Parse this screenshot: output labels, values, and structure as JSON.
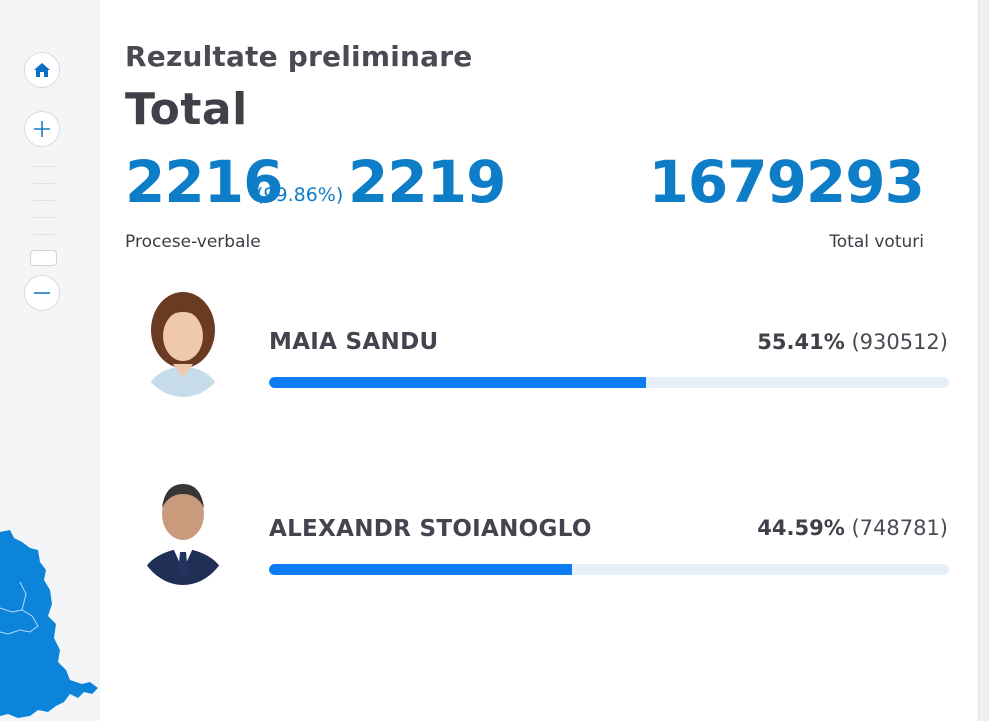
{
  "header": {
    "subtitle": "Rezultate preliminare",
    "title": "Total"
  },
  "stats": {
    "processed": "2216",
    "processed_pct": "(99.86%)",
    "processed_total": "2219",
    "processed_label": "Procese-verbale",
    "total_votes": "1679293",
    "total_votes_label": "Total voturi"
  },
  "candidates": [
    {
      "name": "MAIA SANDU",
      "percent": "55.41%",
      "votes": "(930512)",
      "share": 0.5541
    },
    {
      "name": "ALEXANDR STOIANOGLO",
      "percent": "44.59%",
      "votes": "(748781)",
      "share": 0.4459
    }
  ],
  "colors": {
    "accent": "#0e7dc8",
    "bar": "#0b7df0",
    "bar_track": "#e7f0fa",
    "map": "#0b84d9"
  },
  "icons": {
    "home": "home-icon",
    "zoom_in": "plus-icon",
    "zoom_out": "minus-icon"
  }
}
